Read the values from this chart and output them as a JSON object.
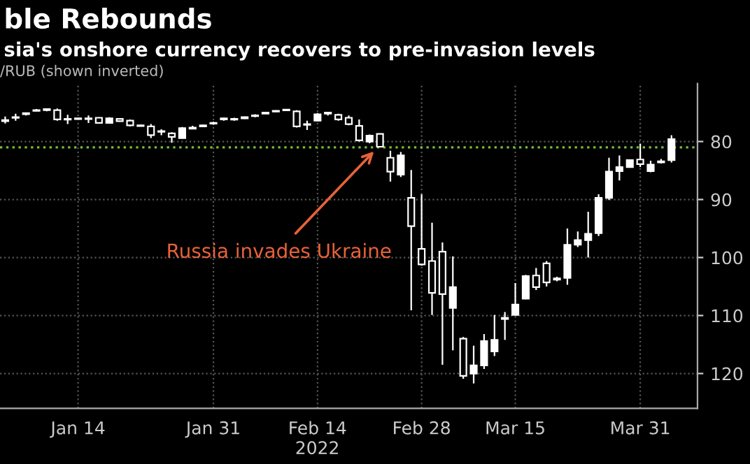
{
  "chart_data": {
    "type": "candlestick",
    "title": "ble Rebounds",
    "subtitle": "sia's onshore currency recovers to pre-invasion levels",
    "ylabel": "/RUB (shown inverted)",
    "xlabel": "2022",
    "annotations": [
      "Russia invades Ukraine"
    ],
    "categories": [
      null,
      null,
      null,
      null,
      null,
      null,
      null,
      "Jan 14",
      null,
      null,
      null,
      null,
      null,
      null,
      null,
      null,
      null,
      null,
      null,
      null,
      "Jan 31",
      null,
      null,
      null,
      null,
      null,
      null,
      null,
      null,
      null,
      "Feb 14",
      null,
      null,
      null,
      null,
      null,
      null,
      null,
      null,
      null,
      "Feb 28",
      null,
      null,
      null,
      null,
      null,
      null,
      null,
      null,
      "Mar 15",
      null,
      null,
      null,
      null,
      null,
      null,
      null,
      null,
      null,
      null,
      null,
      "Mar 31",
      null,
      null,
      null
    ],
    "ohlc": [
      [
        76.3,
        76.9,
        75.7,
        76.5
      ],
      [
        75.9,
        76.4,
        75.2,
        75.8
      ],
      [
        75.3,
        75.5,
        75.0,
        75.1
      ],
      [
        74.7,
        74.8,
        74.4,
        74.6
      ],
      [
        74.6,
        74.8,
        74.3,
        74.4
      ],
      [
        74.6,
        76.4,
        74.3,
        76.2
      ],
      [
        76.1,
        77.0,
        75.4,
        76.2
      ],
      [
        76.0,
        76.1,
        75.9,
        76.0
      ],
      [
        76.0,
        76.8,
        75.5,
        76.1
      ],
      [
        75.9,
        76.9,
        75.8,
        76.8
      ],
      [
        76.8,
        76.9,
        75.8,
        76.0
      ],
      [
        76.1,
        76.6,
        76.0,
        76.5
      ],
      [
        76.4,
        77.4,
        76.2,
        77.2
      ],
      [
        77.2,
        77.3,
        77.1,
        77.2
      ],
      [
        77.4,
        79.4,
        77.0,
        78.9
      ],
      [
        78.2,
        78.9,
        77.9,
        78.3
      ],
      [
        78.6,
        80.2,
        78.4,
        79.2
      ],
      [
        79.4,
        79.5,
        77.5,
        77.7
      ],
      [
        77.6,
        77.9,
        77.3,
        77.8
      ],
      [
        77.4,
        77.5,
        77.1,
        77.2
      ],
      [
        76.9,
        77.1,
        76.6,
        76.8
      ],
      [
        76.2,
        76.4,
        75.9,
        76.0
      ],
      [
        76.1,
        76.4,
        75.9,
        76.2
      ],
      [
        76.0,
        76.1,
        75.7,
        75.8
      ],
      [
        75.6,
        75.8,
        75.3,
        75.5
      ],
      [
        75.2,
        75.2,
        74.9,
        75.0
      ],
      [
        74.8,
        74.9,
        74.6,
        74.7
      ],
      [
        74.6,
        74.7,
        74.4,
        74.5
      ],
      [
        74.8,
        77.6,
        74.6,
        77.4
      ],
      [
        77.0,
        78.0,
        76.4,
        77.1
      ],
      [
        76.4,
        76.5,
        75.1,
        75.3
      ],
      [
        75.0,
        75.5,
        74.9,
        75.2
      ],
      [
        75.4,
        76.4,
        75.2,
        76.2
      ],
      [
        75.9,
        77.2,
        75.5,
        77.0
      ],
      [
        77.3,
        80.0,
        76.2,
        79.8
      ],
      [
        80.0,
        80.3,
        78.8,
        79.0
      ],
      [
        78.7,
        81.0,
        78.6,
        80.9
      ],
      [
        82.8,
        86.9,
        81.6,
        85.2
      ],
      [
        85.7,
        86.1,
        81.8,
        82.4
      ],
      [
        89.7,
        109.1,
        84.9,
        94.6
      ],
      [
        98.5,
        101.4,
        89.1,
        101.2
      ],
      [
        100.6,
        109.9,
        94.0,
        106.1
      ],
      [
        99.0,
        118.5,
        97.4,
        106.3
      ],
      [
        108.7,
        116.0,
        99.8,
        105.1
      ],
      [
        114.0,
        120.9,
        113.7,
        120.4
      ],
      [
        120.0,
        121.7,
        115.2,
        118.6
      ],
      [
        118.6,
        119.2,
        113.2,
        114.4
      ],
      [
        116.2,
        117.0,
        109.9,
        114.2
      ],
      [
        110.6,
        114.2,
        109.4,
        110.4
      ],
      [
        109.9,
        110.0,
        104.4,
        108.1
      ],
      [
        107.1,
        107.2,
        103.0,
        103.2
      ],
      [
        103.1,
        105.6,
        101.8,
        105.1
      ],
      [
        101.0,
        105.0,
        100.6,
        104.3
      ],
      [
        103.6,
        104.1,
        103.3,
        103.8
      ],
      [
        103.5,
        104.7,
        95.0,
        97.8
      ],
      [
        97.8,
        98.2,
        95.5,
        97.0
      ],
      [
        97.0,
        100.0,
        92.1,
        95.9
      ],
      [
        95.8,
        96.3,
        89.1,
        89.7
      ],
      [
        89.7,
        90.1,
        82.8,
        85.2
      ],
      [
        85.1,
        86.7,
        82.4,
        84.4
      ],
      [
        84.4,
        84.5,
        83.1,
        83.2
      ],
      [
        83.1,
        84.4,
        80.4,
        83.9
      ],
      [
        85.1,
        85.3,
        83.3,
        84.0
      ],
      [
        83.6,
        83.8,
        83.0,
        83.4
      ],
      [
        83.2,
        83.6,
        78.9,
        79.6
      ]
    ],
    "color": "#ffffff",
    "ylim": [
      126,
      70
    ],
    "yticks": [
      80,
      90,
      100,
      110,
      120
    ],
    "grid": true,
    "ref_lines": [
      {
        "axis": "y",
        "value": 81,
        "color": "#6fbf3a",
        "line_style": "dotted"
      }
    ]
  }
}
